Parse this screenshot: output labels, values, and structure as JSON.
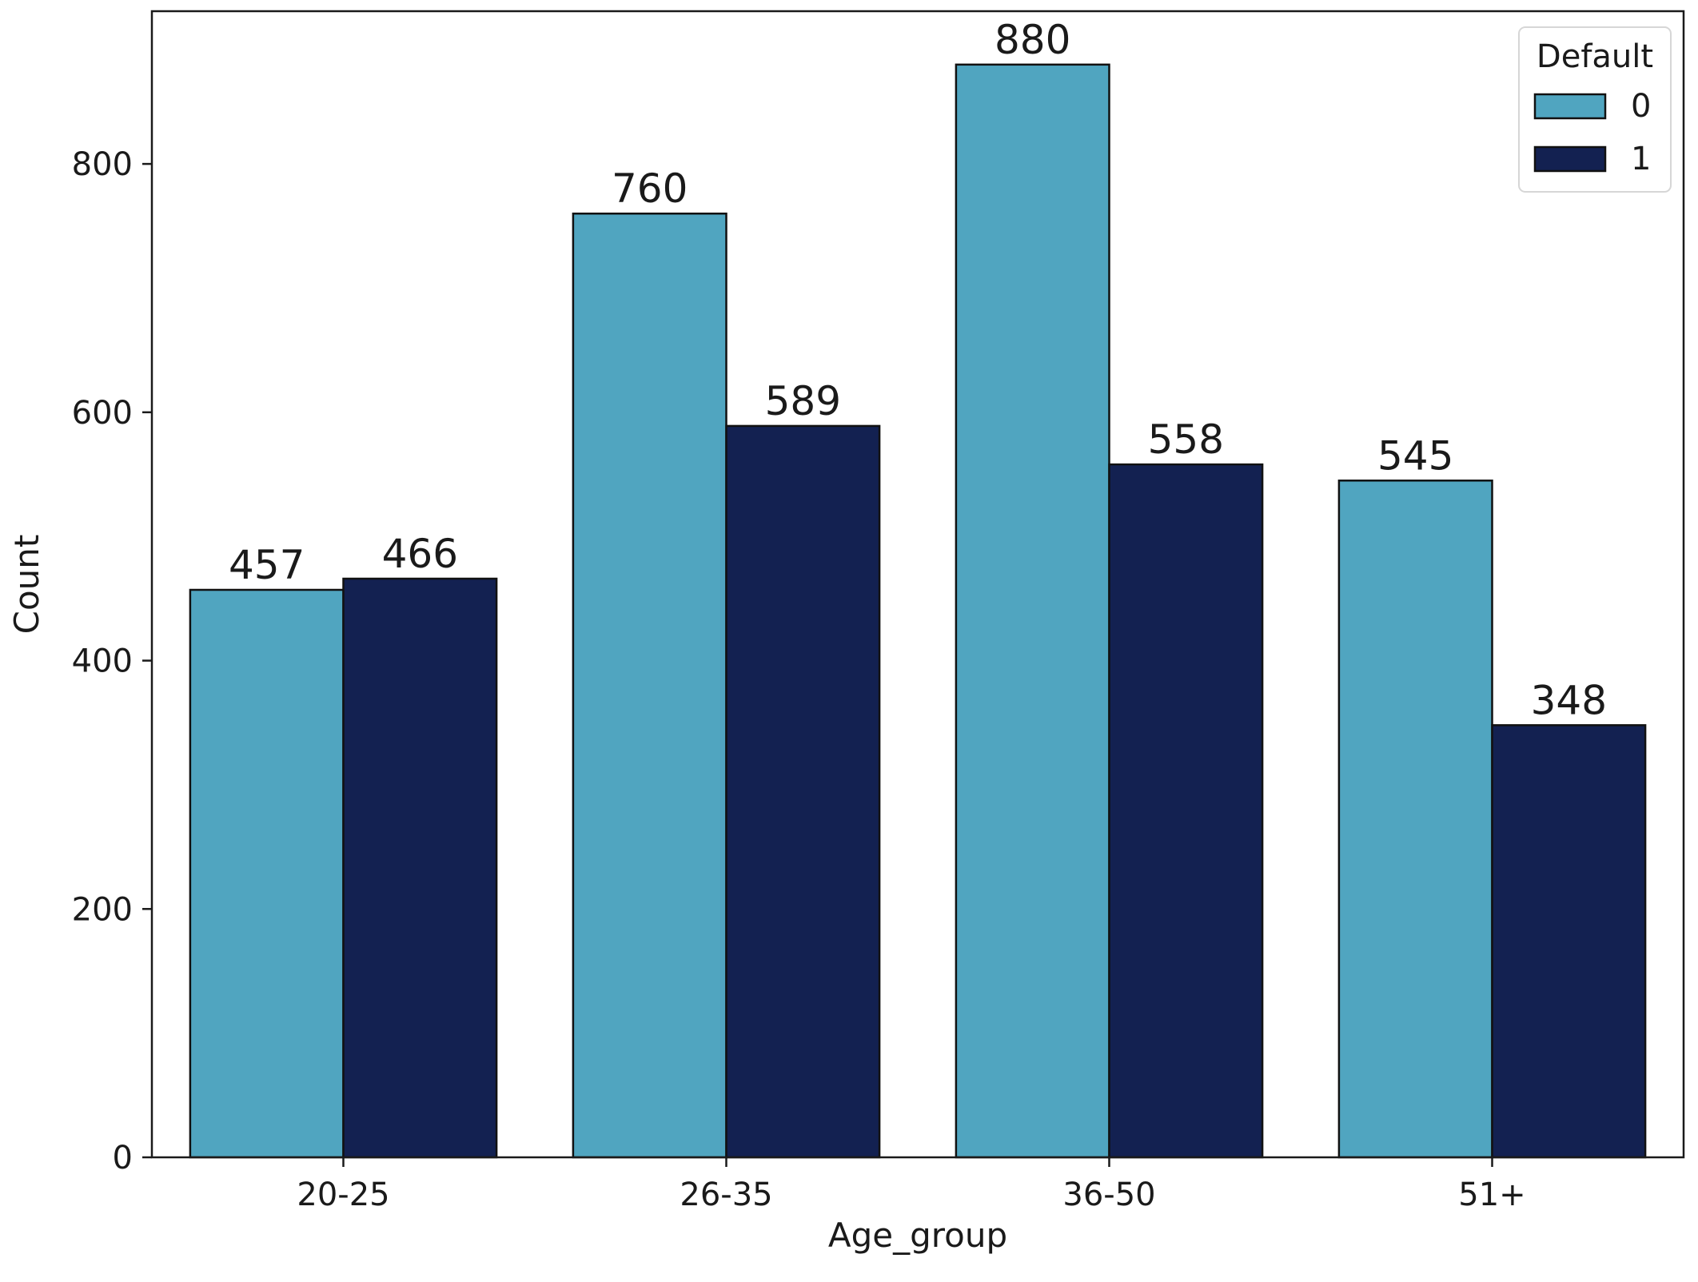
{
  "chart_data": {
    "type": "bar",
    "categories": [
      "20-25",
      "26-35",
      "36-50",
      "51+"
    ],
    "series": [
      {
        "name": "0",
        "values": [
          457,
          760,
          880,
          545
        ],
        "color": "#50A5C0"
      },
      {
        "name": "1",
        "values": [
          466,
          589,
          558,
          348
        ],
        "color": "#132151"
      }
    ],
    "xlabel": "Age_group",
    "ylabel": "Count",
    "ylim": [
      0,
      923
    ],
    "yticks": [
      0,
      200,
      400,
      600,
      800
    ],
    "legend": {
      "title": "Default",
      "placement": "top-right"
    },
    "grid": false,
    "data_labels": true
  }
}
